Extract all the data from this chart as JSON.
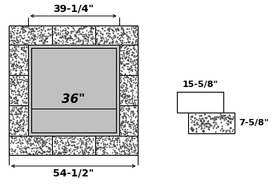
{
  "bg_color": "#ffffff",
  "label_39": "39-1/4\"",
  "label_54": "54-1/2\"",
  "label_36": "36\"",
  "label_15": "15-5/8\"",
  "label_7": "7-5/8\"",
  "font_size_main": 9,
  "font_size_36": 11,
  "font_size_detail": 8,
  "font_weight": "bold",
  "dot_color": "#444444",
  "block_edge": "#000000",
  "inner_gray": "#c8c8c8",
  "pad_gray": "#c0c0c0"
}
